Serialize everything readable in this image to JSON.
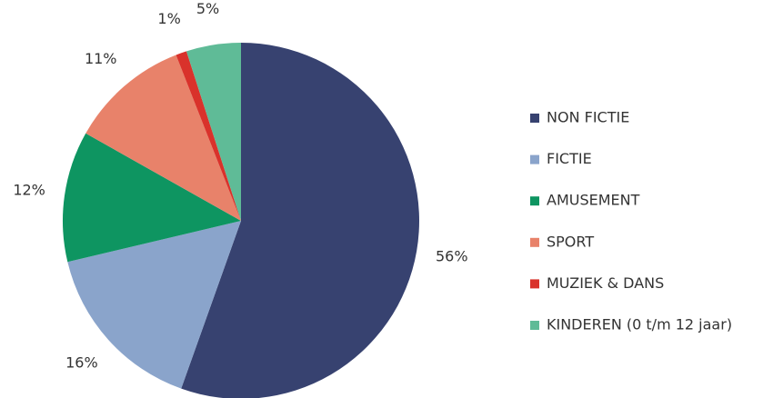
{
  "chart_data": {
    "type": "pie",
    "categories": [
      "NON FICTIE",
      "FICTIE",
      "AMUSEMENT",
      "SPORT",
      "MUZIEK & DANS",
      "KINDEREN (0 t/m 12 jaar)"
    ],
    "values": [
      56,
      16,
      12,
      11,
      1,
      5
    ],
    "value_labels": [
      "56%",
      "16%",
      "12%",
      "11%",
      "1%",
      "5%"
    ],
    "colors": [
      "#374270",
      "#8aa4cb",
      "#0e9561",
      "#e8826a",
      "#d9322b",
      "#5fbb97"
    ],
    "legend": "right"
  }
}
